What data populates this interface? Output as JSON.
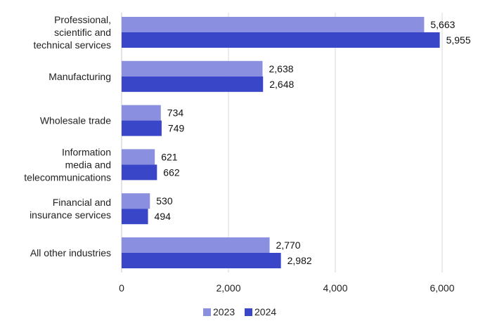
{
  "chart_data": {
    "type": "bar",
    "orientation": "horizontal",
    "categories": [
      [
        "Professional,",
        "scientific and",
        "technical services"
      ],
      [
        "Manufacturing"
      ],
      [
        "Wholesale trade"
      ],
      [
        "Information",
        "media and",
        "telecommunications"
      ],
      [
        "Financial and",
        "insurance services"
      ],
      [
        "All other industries"
      ]
    ],
    "series": [
      {
        "name": "2023",
        "color": "#8a8fe0",
        "values": [
          5663,
          2638,
          734,
          621,
          530,
          2770
        ],
        "labels": [
          "5,663",
          "2,638",
          "734",
          "621",
          "530",
          "2,770"
        ]
      },
      {
        "name": "2024",
        "color": "#3a46c8",
        "values": [
          5955,
          2648,
          749,
          662,
          494,
          2982
        ],
        "labels": [
          "5,955",
          "2,648",
          "749",
          "662",
          "494",
          "2,982"
        ]
      }
    ],
    "xlim": [
      0,
      6000
    ],
    "xticks": [
      0,
      2000,
      4000,
      6000
    ],
    "xtick_labels": [
      "0",
      "2,000",
      "4,000",
      "6,000"
    ],
    "grid": true,
    "legend_position": "bottom-center",
    "title": "",
    "xlabel": "",
    "ylabel": ""
  }
}
